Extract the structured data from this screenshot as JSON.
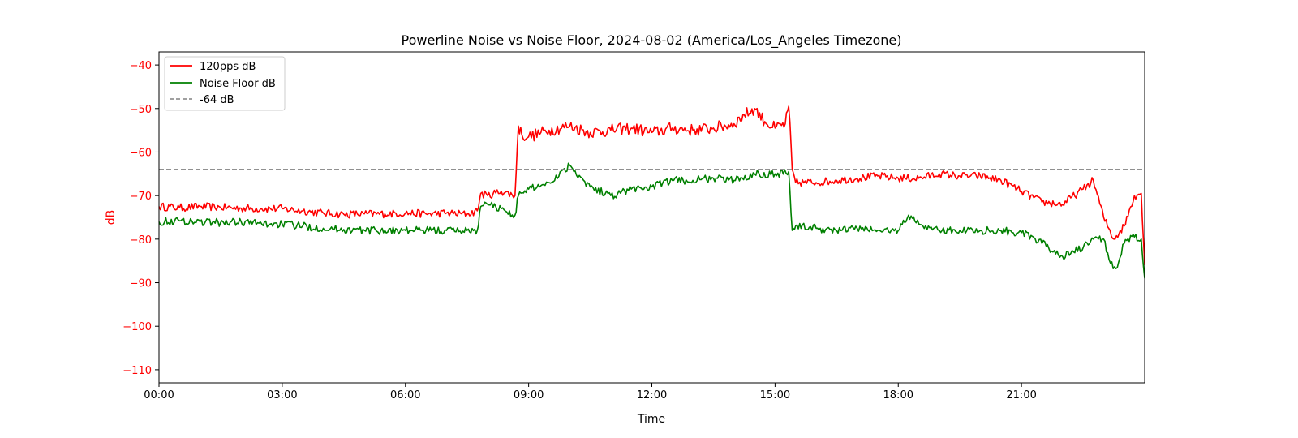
{
  "chart_data": {
    "type": "line",
    "title": "Powerline Noise vs Noise Floor, 2024-08-02 (America/Los_Angeles Timezone)",
    "xlabel": "Time",
    "ylabel": "dB",
    "xlim": [
      "00:00",
      "24:00"
    ],
    "ylim": [
      -113,
      -37
    ],
    "x_ticks": [
      "00:00",
      "03:00",
      "06:00",
      "09:00",
      "12:00",
      "15:00",
      "18:00",
      "21:00"
    ],
    "y_ticks": [
      -40,
      -50,
      -60,
      -70,
      -80,
      -90,
      -100,
      -110
    ],
    "grid": false,
    "legend_position": "top-left",
    "reference_line": {
      "name": "-64 dB",
      "value": -64,
      "color": "#808080",
      "style": "dashed"
    },
    "series": [
      {
        "name": "120pps dB",
        "color": "#ff0000",
        "x": [
          "00:00",
          "00:30",
          "01:00",
          "01:30",
          "02:00",
          "02:30",
          "03:00",
          "03:30",
          "04:00",
          "04:30",
          "05:00",
          "05:30",
          "06:00",
          "06:30",
          "07:00",
          "07:30",
          "07:45",
          "07:50",
          "08:00",
          "08:20",
          "08:40",
          "08:45",
          "08:50",
          "09:00",
          "09:30",
          "10:00",
          "10:30",
          "11:00",
          "11:30",
          "12:00",
          "12:30",
          "13:00",
          "13:30",
          "14:00",
          "14:15",
          "14:30",
          "14:45",
          "15:00",
          "15:15",
          "15:20",
          "15:25",
          "15:30",
          "16:00",
          "16:30",
          "17:00",
          "17:30",
          "18:00",
          "18:30",
          "19:00",
          "19:30",
          "20:00",
          "20:30",
          "21:00",
          "21:30",
          "22:00",
          "22:30",
          "22:45",
          "23:00",
          "23:15",
          "23:30",
          "23:45",
          "23:55",
          "24:00"
        ],
        "values": [
          -72.5,
          -72.8,
          -72.5,
          -72.7,
          -72.9,
          -73.0,
          -73.0,
          -73.5,
          -74.0,
          -74.3,
          -74.2,
          -74.2,
          -74.0,
          -74.2,
          -74.0,
          -74.3,
          -73.5,
          -69.5,
          -70.0,
          -69.0,
          -70.0,
          -54.0,
          -56.0,
          -56.5,
          -55.0,
          -54.0,
          -55.5,
          -55.0,
          -54.5,
          -55.5,
          -54.5,
          -55.0,
          -54.5,
          -53.5,
          -51.5,
          -50.0,
          -53.0,
          -54.5,
          -53.5,
          -49.5,
          -64.0,
          -67.0,
          -67.0,
          -66.5,
          -66.0,
          -65.5,
          -66.0,
          -66.0,
          -65.0,
          -65.5,
          -65.5,
          -66.5,
          -69.0,
          -71.5,
          -72.0,
          -68.5,
          -66.5,
          -75.0,
          -80.0,
          -77.0,
          -70.0,
          -69.5,
          -86.0
        ]
      },
      {
        "name": "Noise Floor dB",
        "color": "#008000",
        "x": [
          "00:00",
          "00:30",
          "01:00",
          "01:30",
          "02:00",
          "02:30",
          "03:00",
          "03:30",
          "04:00",
          "04:30",
          "05:00",
          "05:30",
          "06:00",
          "06:30",
          "07:00",
          "07:30",
          "07:45",
          "07:50",
          "08:00",
          "08:20",
          "08:40",
          "08:45",
          "09:00",
          "09:30",
          "10:00",
          "10:30",
          "11:00",
          "11:30",
          "12:00",
          "12:30",
          "13:00",
          "13:30",
          "14:00",
          "14:30",
          "15:00",
          "15:20",
          "15:25",
          "15:30",
          "16:00",
          "16:30",
          "17:00",
          "17:30",
          "18:00",
          "18:15",
          "18:30",
          "19:00",
          "19:30",
          "20:00",
          "20:30",
          "21:00",
          "21:30",
          "22:00",
          "22:30",
          "22:45",
          "23:00",
          "23:10",
          "23:20",
          "23:30",
          "23:45",
          "23:55",
          "24:00"
        ],
        "values": [
          -76.0,
          -75.8,
          -76.0,
          -76.2,
          -76.0,
          -76.5,
          -76.5,
          -77.0,
          -77.5,
          -77.8,
          -78.0,
          -78.0,
          -78.0,
          -78.0,
          -78.0,
          -78.0,
          -78.0,
          -72.5,
          -72.0,
          -73.0,
          -74.5,
          -70.0,
          -68.5,
          -67.0,
          -63.0,
          -68.0,
          -70.0,
          -68.5,
          -68.0,
          -66.5,
          -66.5,
          -66.0,
          -66.5,
          -65.0,
          -65.0,
          -64.5,
          -78.0,
          -77.0,
          -77.5,
          -78.0,
          -77.5,
          -78.0,
          -78.0,
          -74.5,
          -76.5,
          -78.0,
          -78.0,
          -78.0,
          -78.0,
          -78.5,
          -81.0,
          -84.0,
          -82.0,
          -80.0,
          -80.0,
          -85.5,
          -86.5,
          -81.0,
          -79.5,
          -80.0,
          -89.0
        ]
      }
    ]
  }
}
